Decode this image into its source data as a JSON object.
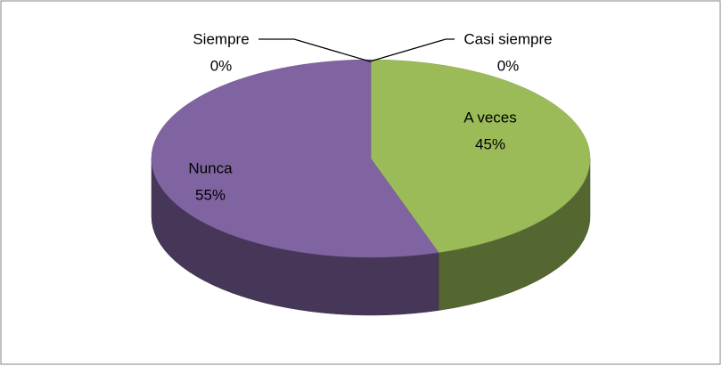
{
  "chart_data": {
    "type": "pie",
    "categories": [
      "Siempre",
      "Casi siempre",
      "A veces",
      "Nunca"
    ],
    "values": [
      0,
      0,
      45,
      55
    ],
    "value_labels": [
      "0%",
      "0%",
      "45%",
      "55%"
    ],
    "colors": [
      "#4f81bd",
      "#c0504d",
      "#9bbb59",
      "#8064a2"
    ],
    "style": "3d"
  }
}
